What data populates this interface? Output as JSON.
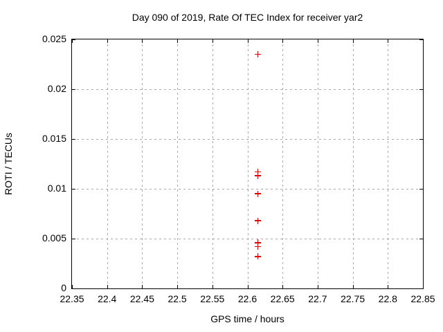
{
  "chart_data": {
    "type": "scatter",
    "title": "Day 090 of 2019, Rate Of TEC Index for receiver yar2",
    "xlabel": "GPS time / hours",
    "ylabel": "ROTI / TECUs",
    "xlim": [
      22.35,
      22.85
    ],
    "ylim": [
      0,
      0.025
    ],
    "xticks": [
      22.35,
      22.4,
      22.45,
      22.5,
      22.55,
      22.6,
      22.65,
      22.7,
      22.75,
      22.8,
      22.85
    ],
    "xtick_labels": [
      "22.35",
      "22.4",
      "22.45",
      "22.5",
      "22.55",
      "22.6",
      "22.65",
      "22.7",
      "22.75",
      "22.8",
      "22.85"
    ],
    "yticks": [
      0,
      0.005,
      0.01,
      0.015,
      0.02,
      0.025
    ],
    "ytick_labels": [
      "0",
      "0.005",
      "0.01",
      "0.015",
      "0.02",
      "0.025"
    ],
    "grid": true,
    "legend": "none",
    "marker": {
      "shape": "plus",
      "size": 9
    },
    "points": [
      {
        "x": 22.615,
        "y": 0.0235
      },
      {
        "x": 22.615,
        "y": 0.0117
      },
      {
        "x": 22.615,
        "y": 0.0113
      },
      {
        "x": 22.615,
        "y": 0.0095
      },
      {
        "x": 22.615,
        "y": 0.0068
      },
      {
        "x": 22.615,
        "y": 0.0046
      },
      {
        "x": 22.615,
        "y": 0.0042
      },
      {
        "x": 22.615,
        "y": 0.0032
      }
    ]
  },
  "colors": {
    "background": "#ffffff",
    "axis": "#000000",
    "text": "#000000",
    "grid": "#a8a8a8",
    "marker": "#dd0000"
  }
}
